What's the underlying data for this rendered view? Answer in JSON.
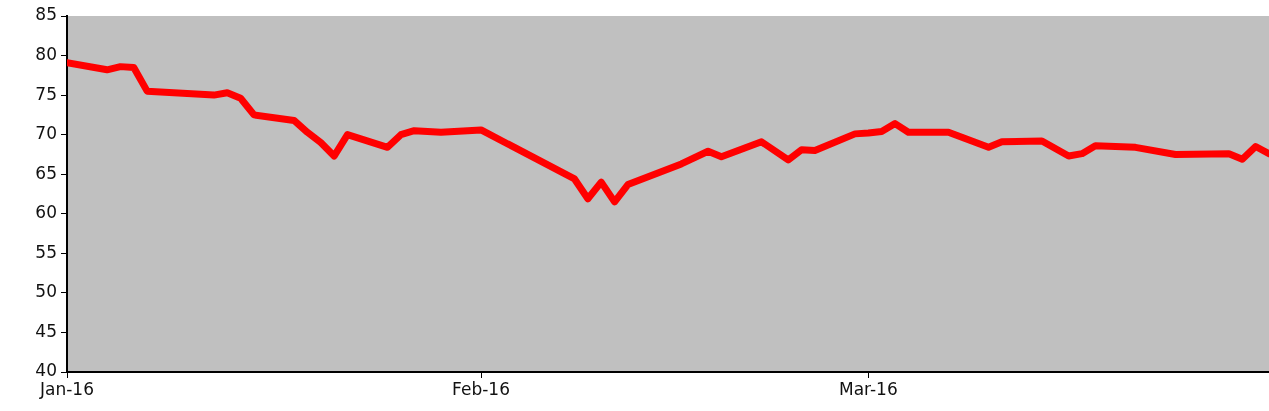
{
  "chart_data": {
    "type": "line",
    "x": [
      "2016-01-01",
      "2016-01-04",
      "2016-01-05",
      "2016-01-06",
      "2016-01-07",
      "2016-01-10",
      "2016-01-12",
      "2016-01-13",
      "2016-01-14",
      "2016-01-15",
      "2016-01-18",
      "2016-01-19",
      "2016-01-20",
      "2016-01-21",
      "2016-01-22",
      "2016-01-25",
      "2016-01-26",
      "2016-01-27",
      "2016-01-29",
      "2016-02-01",
      "2016-02-08",
      "2016-02-09",
      "2016-02-10",
      "2016-02-11",
      "2016-02-12",
      "2016-02-16",
      "2016-02-18",
      "2016-02-19",
      "2016-02-22",
      "2016-02-24",
      "2016-02-25",
      "2016-02-26",
      "2016-02-29",
      "2016-03-01",
      "2016-03-02",
      "2016-03-03",
      "2016-03-04",
      "2016-03-07",
      "2016-03-10",
      "2016-03-11",
      "2016-03-14",
      "2016-03-16",
      "2016-03-17",
      "2016-03-18",
      "2016-03-21",
      "2016-03-24",
      "2016-03-28",
      "2016-03-29",
      "2016-03-30",
      "2016-03-31"
    ],
    "series": [
      {
        "color": "#ff0000",
        "values": [
          79.1,
          78.2,
          78.6,
          78.5,
          75.5,
          75.2,
          75.0,
          75.3,
          74.6,
          72.5,
          71.8,
          70.3,
          69.0,
          67.3,
          70.0,
          68.4,
          70.0,
          70.5,
          70.3,
          70.6,
          64.4,
          61.9,
          64.0,
          61.5,
          63.7,
          66.3,
          67.9,
          67.2,
          69.1,
          66.8,
          68.1,
          68.0,
          70.1,
          70.2,
          70.4,
          71.4,
          70.3,
          70.3,
          68.4,
          69.1,
          69.2,
          67.3,
          67.6,
          68.6,
          68.4,
          67.5,
          67.6,
          66.9,
          68.5,
          67.6
        ]
      }
    ],
    "xlim": [
      "2016-01-01",
      "2016-03-31"
    ],
    "xticks": [
      {
        "value": "2016-01-01",
        "label": "Jan-16"
      },
      {
        "value": "2016-02-01",
        "label": "Feb-16"
      },
      {
        "value": "2016-03-01",
        "label": "Mar-16"
      }
    ],
    "ylim": [
      40,
      85
    ],
    "yticks": [
      40,
      45,
      50,
      55,
      60,
      65,
      70,
      75,
      80,
      85
    ],
    "grid": false,
    "legend": false,
    "marker": "none",
    "line_style": "solid"
  }
}
